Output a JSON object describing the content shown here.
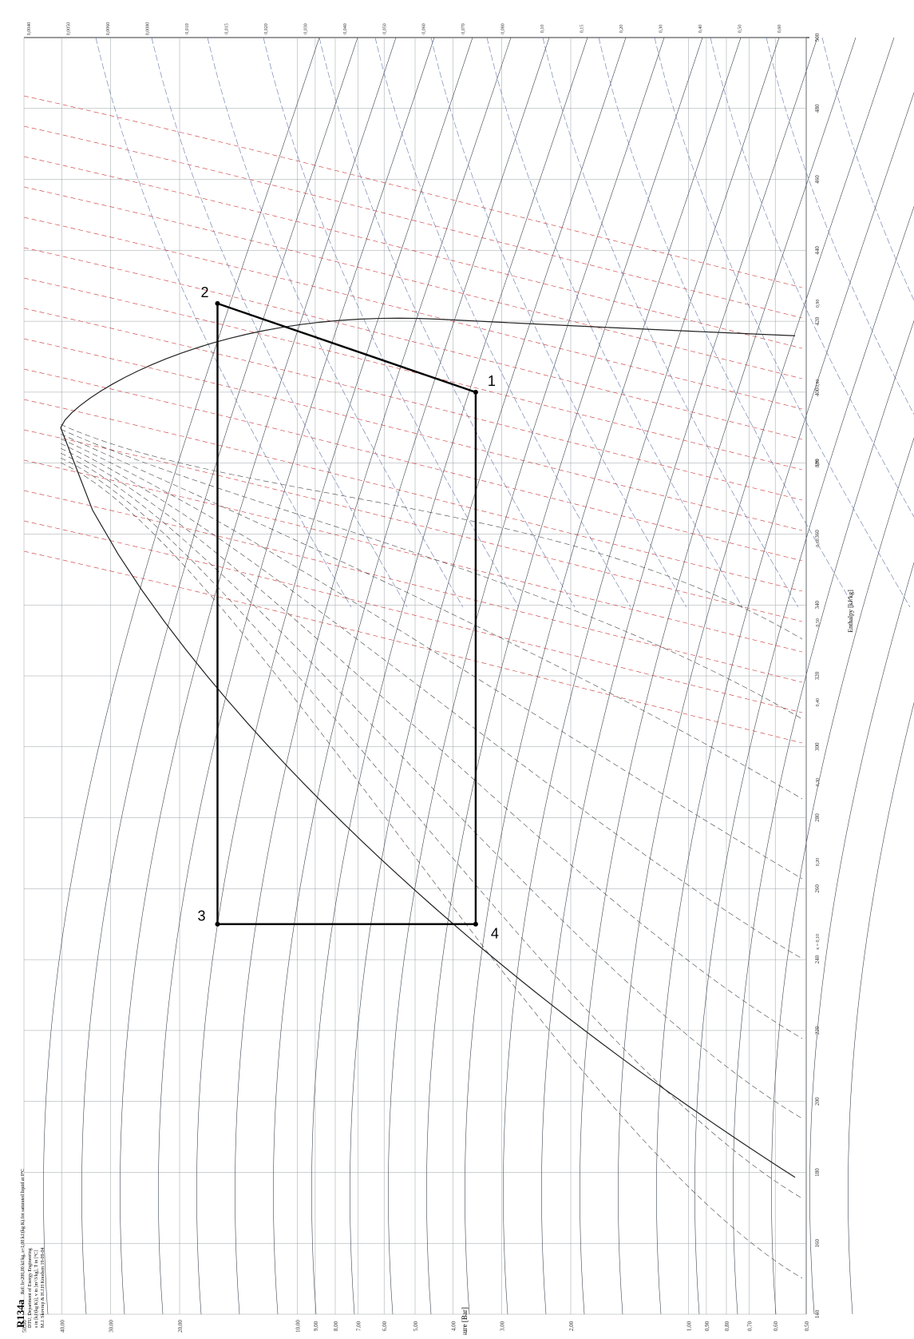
{
  "chart_data": {
    "type": "diagram",
    "title": "R134a",
    "subtitle_lines": [
      "Ref: h=200,00 kJ/kg, s=1,00 kJ/(kg·K) for saturated liquid at 0°C",
      "DTU, Department of Energy Engineering",
      "s in [kJ/(kg K)], v in [m^3/kg], T in [°C]",
      "M.J. Skovrup & H.J.H Knudsen 19-09-04"
    ],
    "axis_labels": {
      "pressure": "Pressure [Bar]",
      "enthalpy": "Enthalpy [kJ/kg]"
    },
    "pressure_ticks": [
      "50,00",
      "40,00",
      "30,00",
      "20,00",
      "10,00",
      "9,00",
      "8,00",
      "7,00",
      "6,00",
      "5,00",
      "4,00",
      "3,00",
      "2,00",
      "1,00",
      "0,90",
      "0,80",
      "0,70",
      "0,60",
      "0,50"
    ],
    "enthalpy_ticks": [
      "140",
      "160",
      "180",
      "200",
      "220",
      "240",
      "260",
      "280",
      "300",
      "320",
      "340",
      "360",
      "380",
      "400",
      "420",
      "440",
      "460",
      "480",
      "500"
    ],
    "volume_ticks": [
      "0,0040",
      "0,0050",
      "0,0060",
      "0,0080",
      "0,010",
      "0,015",
      "0,020",
      "0,030",
      "0,040",
      "0,050",
      "0,060",
      "0,070",
      "0,080",
      "0,10",
      "0,15",
      "0,20",
      "0,30",
      "0,40",
      "0,50",
      "0,60"
    ],
    "quality_ticks": [
      "x = 0,10",
      "0,20",
      "0,30",
      "0,40",
      "0,50",
      "0,60",
      "0,70",
      "0,80",
      "0,90"
    ],
    "cycle": {
      "points": [
        {
          "label": "1",
          "h": 400,
          "p": 3.5
        },
        {
          "label": "2",
          "h": 425,
          "p": 16
        },
        {
          "label": "3",
          "h": 250,
          "p": 16
        },
        {
          "label": "4",
          "h": 250,
          "p": 3.5
        }
      ]
    },
    "colors": {
      "grid": "#9aa0a6",
      "isotherm": "#3d4650",
      "isochore": "#cc3333",
      "isentrope": "#6677aa",
      "saturation": "#222222",
      "cycle": "#000000"
    }
  }
}
